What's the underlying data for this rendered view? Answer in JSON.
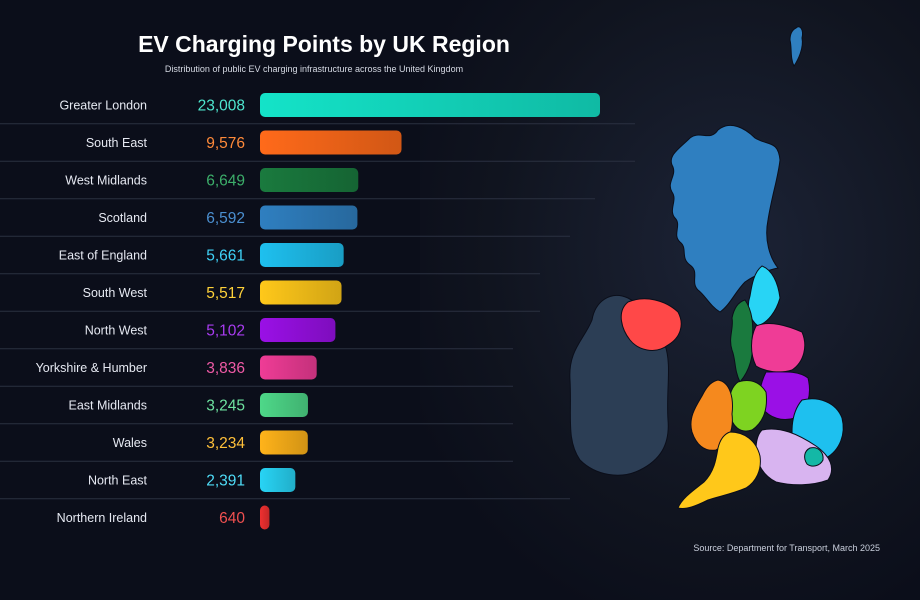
{
  "header": {
    "title": "EV Charging Points by UK Region",
    "subtitle": "Distribution of public EV charging infrastructure across the United Kingdom"
  },
  "footer": {
    "source": "Source: Department for Transport, March 2025"
  },
  "chart_data": {
    "type": "bar",
    "orientation": "horizontal",
    "title": "EV Charging Points by UK Region",
    "subtitle": "Distribution of public EV charging infrastructure across the United Kingdom",
    "categories": [
      "Greater London",
      "South East",
      "West Midlands",
      "Scotland",
      "East of England",
      "South West",
      "North West",
      "Yorkshire & Humber",
      "East Midlands",
      "Wales",
      "North East",
      "Northern Ireland"
    ],
    "values": [
      23008,
      9576,
      6649,
      6592,
      5661,
      5517,
      5102,
      3836,
      3245,
      3234,
      2391,
      640
    ],
    "value_labels": [
      "23,008",
      "9,576",
      "6,649",
      "6,592",
      "5,661",
      "5,517",
      "5,102",
      "3,836",
      "3,245",
      "3,234",
      "2,391",
      "640"
    ],
    "colors": [
      "#14e3c8",
      "#ff6a1a",
      "#1a7a3e",
      "#2f7fc0",
      "#1ec0ef",
      "#ffc81a",
      "#9a10e6",
      "#ef3c96",
      "#4ed889",
      "#ffb31a",
      "#28d4f5",
      "#ef3030"
    ],
    "value_colors": [
      "#4ee6cf",
      "#ff8a3a",
      "#3cae6a",
      "#4b8fd0",
      "#3fd2f7",
      "#ffd23a",
      "#a83cf0",
      "#f05aa6",
      "#6ee2a0",
      "#ffc03a",
      "#4fdcf7",
      "#f05050"
    ],
    "xlim": [
      0,
      23008
    ],
    "grid": false,
    "legend": "none"
  },
  "map": {
    "regions": [
      {
        "name": "Scotland",
        "color": "#2f7fc0"
      },
      {
        "name": "North East",
        "color": "#28d4f5"
      },
      {
        "name": "North West",
        "color": "#1a7a3e"
      },
      {
        "name": "Yorkshire & Humber",
        "color": "#ef3c96"
      },
      {
        "name": "West Midlands",
        "color": "#7ed321"
      },
      {
        "name": "East Midlands",
        "color": "#9a10e6"
      },
      {
        "name": "East of England",
        "color": "#1ec0ef"
      },
      {
        "name": "Wales",
        "color": "#f5891e"
      },
      {
        "name": "South West",
        "color": "#ffc81a"
      },
      {
        "name": "South East",
        "color": "#d8b4f0"
      },
      {
        "name": "Greater London",
        "color": "#14b8a6"
      },
      {
        "name": "Northern Ireland",
        "color": "#ff4848"
      },
      {
        "name": "Ireland",
        "color": "#2c3e55"
      }
    ]
  }
}
